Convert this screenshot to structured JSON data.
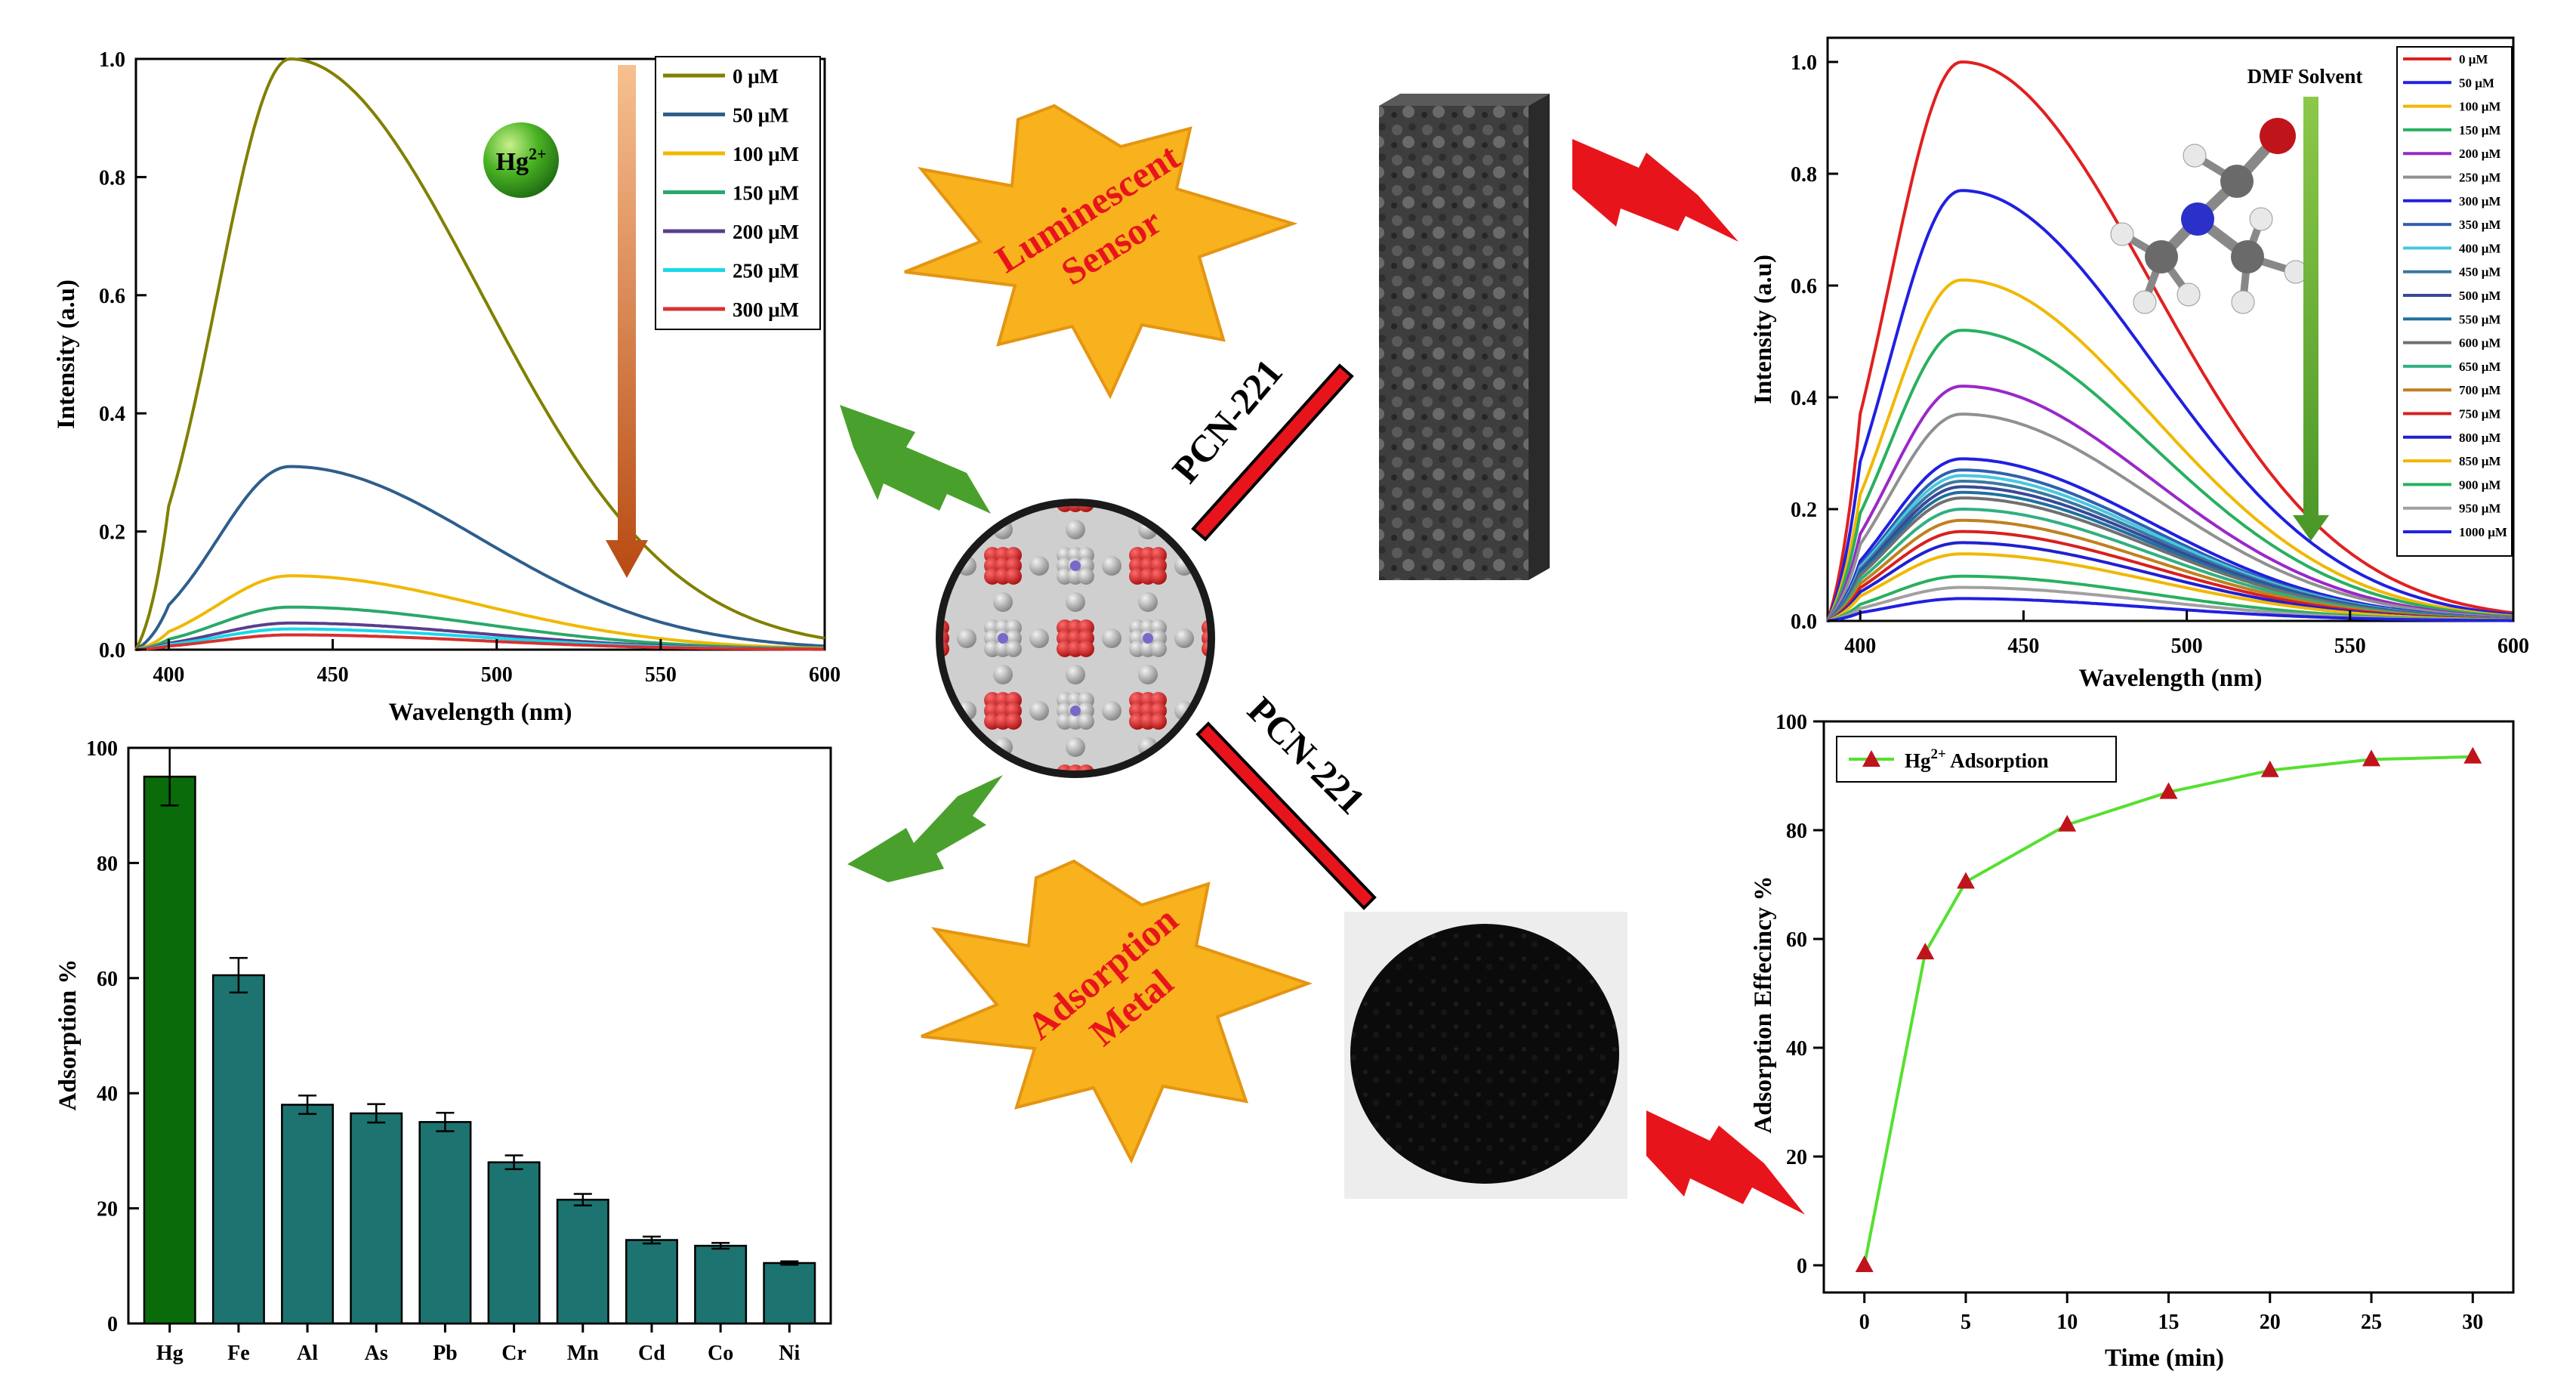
{
  "panel_labels": {
    "luminescent_line1": "Luminescent",
    "luminescent_line2": "Sensor",
    "adsorption_line1": "Adsorption",
    "adsorption_line2": "Metal",
    "pcn_top": "PCN-221",
    "pcn_bottom": "PCN-221",
    "hg_ball_base": "Hg",
    "hg_ball_sup": "2+",
    "dmf_label": "DMF Solvent"
  },
  "colors": {
    "bar_hg": "#0a6b0a",
    "bar_other": "#1d7370",
    "star_fill": "#f7b21d",
    "star_text": "#e8141c",
    "arrow_green": "#4aa02c",
    "bolt_red": "#e8141c",
    "adsorption_line": "#55e030",
    "adsorption_marker": "#c0141c"
  },
  "chart_data": [
    {
      "type": "line",
      "id": "hg-luminescence",
      "xlabel": "Wavelength (nm)",
      "ylabel": "Intensity (a.u)",
      "xlim": [
        390,
        600
      ],
      "ylim": [
        0,
        1.0
      ],
      "xticks": [
        400,
        450,
        500,
        550,
        600
      ],
      "yticks": [
        0.0,
        0.2,
        0.4,
        0.6,
        0.8,
        1.0
      ],
      "peak_x": 437,
      "legend_position": "top-right",
      "series": [
        {
          "name": "0 μM",
          "peak": 1.0,
          "color": "#808000"
        },
        {
          "name": "50 μM",
          "peak": 0.31,
          "color": "#2e5e8c"
        },
        {
          "name": "100 μM",
          "peak": 0.125,
          "color": "#f0b800"
        },
        {
          "name": "150 μM",
          "peak": 0.072,
          "color": "#2aa86a"
        },
        {
          "name": "200 μM",
          "peak": 0.045,
          "color": "#5a3e8c"
        },
        {
          "name": "250 μM",
          "peak": 0.035,
          "color": "#18d8e8"
        },
        {
          "name": "300 μM",
          "peak": 0.025,
          "color": "#d83030"
        }
      ]
    },
    {
      "type": "line",
      "id": "dmf-luminescence",
      "xlabel": "Wavelength (nm)",
      "ylabel": "Intensity (a.u)",
      "xlim": [
        390,
        600
      ],
      "ylim": [
        0,
        1.0
      ],
      "xticks": [
        400,
        450,
        500,
        550,
        600
      ],
      "yticks": [
        0.0,
        0.2,
        0.4,
        0.6,
        0.8,
        1.0
      ],
      "peak_x": 431,
      "legend_position": "top-right",
      "series": [
        {
          "name": "0 μM",
          "peak": 1.0,
          "color": "#e02020"
        },
        {
          "name": "50 μM",
          "peak": 0.77,
          "color": "#2020e0"
        },
        {
          "name": "100 μM",
          "peak": 0.61,
          "color": "#f0b800"
        },
        {
          "name": "150 μM",
          "peak": 0.52,
          "color": "#28b060"
        },
        {
          "name": "200 μM",
          "peak": 0.42,
          "color": "#9a28c8"
        },
        {
          "name": "250 μM",
          "peak": 0.37,
          "color": "#909090"
        },
        {
          "name": "300 μM",
          "peak": 0.29,
          "color": "#2020e0"
        },
        {
          "name": "350 μM",
          "peak": 0.27,
          "color": "#3060b0"
        },
        {
          "name": "400 μM",
          "peak": 0.26,
          "color": "#48c8e0"
        },
        {
          "name": "450 μM",
          "peak": 0.25,
          "color": "#3a78a0"
        },
        {
          "name": "500 μM",
          "peak": 0.24,
          "color": "#384898"
        },
        {
          "name": "550 μM",
          "peak": 0.23,
          "color": "#2070a0"
        },
        {
          "name": "600 μM",
          "peak": 0.22,
          "color": "#707070"
        },
        {
          "name": "650 μM",
          "peak": 0.2,
          "color": "#30b080"
        },
        {
          "name": "700 μM",
          "peak": 0.18,
          "color": "#c08020"
        },
        {
          "name": "750 μM",
          "peak": 0.16,
          "color": "#d82020"
        },
        {
          "name": "800 μM",
          "peak": 0.14,
          "color": "#2020d0"
        },
        {
          "name": "850 μM",
          "peak": 0.12,
          "color": "#f0b800"
        },
        {
          "name": "900 μM",
          "peak": 0.08,
          "color": "#28b060"
        },
        {
          "name": "950 μM",
          "peak": 0.06,
          "color": "#a0a0a0"
        },
        {
          "name": "1000 μM",
          "peak": 0.04,
          "color": "#2020e0"
        }
      ]
    },
    {
      "type": "bar",
      "id": "metal-adsorption",
      "xlabel": "",
      "ylabel": "Adsorption %",
      "ylim": [
        0,
        100
      ],
      "yticks": [
        0,
        20,
        40,
        60,
        80,
        100
      ],
      "categories": [
        "Hg",
        "Fe",
        "Al",
        "As",
        "Pb",
        "Cr",
        "Mn",
        "Cd",
        "Co",
        "Ni"
      ],
      "values": [
        95,
        60.5,
        38,
        36.5,
        35,
        28,
        21.5,
        14.5,
        13.5,
        10.5
      ],
      "errors": [
        5,
        3,
        1.6,
        1.6,
        1.6,
        1.2,
        1,
        0.6,
        0.5,
        0.3
      ]
    },
    {
      "type": "line",
      "id": "adsorption-kinetics",
      "xlabel": "Time (min)",
      "ylabel": "Adsorption Effecincy %",
      "xlim": [
        -2,
        32
      ],
      "ylim": [
        -5,
        100
      ],
      "xticks": [
        0,
        5,
        10,
        15,
        20,
        25,
        30
      ],
      "yticks": [
        0,
        20,
        40,
        60,
        80,
        100
      ],
      "legend_position": "top-left",
      "series": [
        {
          "name_base": "Hg",
          "name_sup": "2+",
          "name_rest": " Adsorption",
          "x": [
            0,
            3,
            5,
            10,
            15,
            20,
            25,
            30
          ],
          "y": [
            0,
            57.5,
            70.5,
            81,
            87,
            91,
            93,
            93.5
          ]
        }
      ]
    }
  ]
}
